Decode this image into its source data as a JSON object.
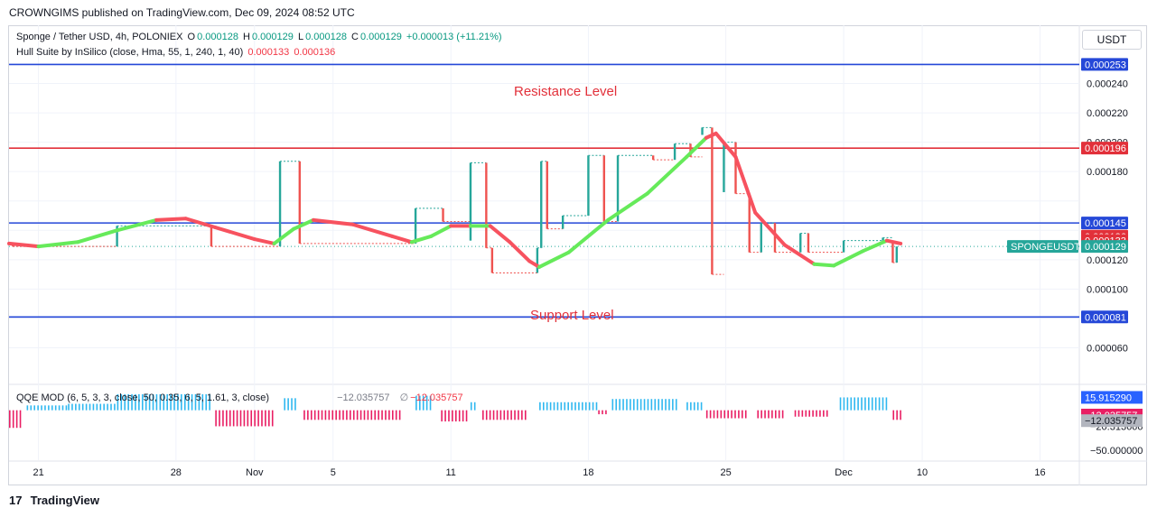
{
  "header": {
    "publisher_line": "CROWNGIMS published on TradingView.com, Dec 09, 2024 08:52 UTC"
  },
  "legend": {
    "symbol": "Sponge / Tether USD, 4h, POLONIEX",
    "o_label": "O",
    "o_value": "0.000128",
    "h_label": "H",
    "h_value": "0.000129",
    "l_label": "L",
    "l_value": "0.000128",
    "c_label": "C",
    "c_value": "0.000129",
    "change": "+0.000013 (+11.21%)",
    "indicator": "Hull Suite by InSilico (close, Hma, 55, 1, 240, 1, 40)",
    "indicator_v1": "0.000133",
    "indicator_v2": "0.000136"
  },
  "qqe_legend": {
    "name": "QQE MOD (6, 5, 3, 3, close, 50, 0.35, 6, 5, 1.61, 3, close)",
    "v1": "−12.035757",
    "v2": "∅",
    "v3": "−12.035757"
  },
  "currency_button": "USDT",
  "annotations": {
    "resistance": "Resistance Level",
    "support": "Support Level"
  },
  "footer": {
    "brand": "TradingView",
    "logo_glyph": "17"
  },
  "colors": {
    "up": "#26a69a",
    "down": "#ef5350",
    "hull_up": "#66ea5a",
    "hull_down": "#f7525f",
    "resistance": "#e2303a",
    "support": "#2548d8",
    "qqe_up": "#2fb8f0",
    "qqe_down": "#e91e63"
  },
  "chart_data": {
    "type": "candlestick",
    "price_axis": {
      "ticks": [
        6e-05,
        8e-05,
        0.0001,
        0.00012,
        0.00014,
        0.00016,
        0.00018,
        0.0002,
        0.00022,
        0.00024
      ],
      "tick_labels": [
        "0.000060",
        "0.000100",
        "0.000120",
        "0.000180",
        "0.000200",
        "0.000220",
        "0.000240"
      ],
      "ylim": [
        4e-05,
        0.00026
      ]
    },
    "price_badges": [
      {
        "label": "0.000253",
        "value": 0.000253,
        "color": "#2548d8"
      },
      {
        "label": "0.000196",
        "value": 0.000196,
        "color": "#e2303a"
      },
      {
        "label": "0.000145",
        "value": 0.000145,
        "color": "#2548d8"
      },
      {
        "label": "0.000136",
        "value": 0.000136,
        "color": "#e2303a"
      },
      {
        "label": "0.000133",
        "value": 0.000133,
        "color": "#e2303a"
      },
      {
        "label": "0.000129",
        "value": 0.000129,
        "color": "#26a69a"
      },
      {
        "label": "0.000081",
        "value": 8.1e-05,
        "color": "#2548d8"
      }
    ],
    "symbol_badge": "SPONGEUSDT",
    "horizontal_lines": [
      {
        "value": 0.000253,
        "color": "#2548d8"
      },
      {
        "value": 0.000196,
        "color": "#e2303a"
      },
      {
        "value": 0.000145,
        "color": "#2548d8"
      },
      {
        "value": 8.1e-05,
        "color": "#2548d8"
      }
    ],
    "x_axis": {
      "labels": [
        "21",
        "28",
        "Nov",
        "5",
        "11",
        "18",
        "25",
        "Dec",
        "10",
        "16"
      ],
      "positions": [
        0,
        7,
        11,
        15,
        21,
        28,
        35,
        41,
        45,
        51
      ],
      "range": [
        -1.5,
        53
      ]
    },
    "candles": [
      {
        "t": -1.3,
        "o": 0.00013,
        "c": 0.000129
      },
      {
        "t": 4.0,
        "o": 0.000129,
        "c": 0.000143
      },
      {
        "t": 8.8,
        "o": 0.000143,
        "c": 0.000129
      },
      {
        "t": 12.3,
        "o": 0.000129,
        "c": 0.000187
      },
      {
        "t": 13.3,
        "o": 0.000187,
        "c": 0.000131
      },
      {
        "t": 19.2,
        "o": 0.000131,
        "c": 0.000155
      },
      {
        "t": 20.6,
        "o": 0.000155,
        "c": 0.000146
      },
      {
        "t": 22.0,
        "o": 0.000133,
        "c": 0.000186
      },
      {
        "t": 22.8,
        "o": 0.000186,
        "c": 0.000128
      },
      {
        "t": 23.1,
        "o": 0.000128,
        "c": 0.000111
      },
      {
        "t": 25.4,
        "o": 0.000111,
        "c": 0.000128
      },
      {
        "t": 25.6,
        "o": 0.000128,
        "c": 0.000187
      },
      {
        "t": 25.9,
        "o": 0.000187,
        "c": 0.000141
      },
      {
        "t": 26.7,
        "o": 0.000141,
        "c": 0.00015
      },
      {
        "t": 28.0,
        "o": 0.00015,
        "c": 0.000191
      },
      {
        "t": 28.8,
        "o": 0.000191,
        "c": 0.000146
      },
      {
        "t": 29.5,
        "o": 0.000146,
        "c": 0.000191
      },
      {
        "t": 31.3,
        "o": 0.000191,
        "c": 0.000188
      },
      {
        "t": 32.4,
        "o": 0.000188,
        "c": 0.000199
      },
      {
        "t": 33.2,
        "o": 0.000199,
        "c": 0.00019
      },
      {
        "t": 33.8,
        "o": 0.000205,
        "c": 0.00021
      },
      {
        "t": 34.3,
        "o": 0.00021,
        "c": 0.00011
      },
      {
        "t": 34.9,
        "o": 0.000166,
        "c": 0.0002
      },
      {
        "t": 35.5,
        "o": 0.0002,
        "c": 0.000165
      },
      {
        "t": 36.2,
        "o": 0.000165,
        "c": 0.000125
      },
      {
        "t": 36.8,
        "o": 0.000125,
        "c": 0.000145
      },
      {
        "t": 37.5,
        "o": 0.000145,
        "c": 0.000125
      },
      {
        "t": 38.8,
        "o": 0.000125,
        "c": 0.000138
      },
      {
        "t": 39.2,
        "o": 0.000138,
        "c": 0.000125
      },
      {
        "t": 41.0,
        "o": 0.000125,
        "c": 0.000133
      },
      {
        "t": 43.0,
        "o": 0.000133,
        "c": 0.000135
      },
      {
        "t": 43.5,
        "o": 0.000133,
        "c": 0.000118
      },
      {
        "t": 43.7,
        "o": 0.000118,
        "c": 0.000129
      }
    ],
    "hull_line": [
      {
        "t": -1.5,
        "v": 0.000131,
        "dir": "down"
      },
      {
        "t": 0,
        "v": 0.000129,
        "dir": "down"
      },
      {
        "t": 2,
        "v": 0.000132,
        "dir": "up"
      },
      {
        "t": 4,
        "v": 0.00014,
        "dir": "up"
      },
      {
        "t": 6,
        "v": 0.000147,
        "dir": "up"
      },
      {
        "t": 7.5,
        "v": 0.000148,
        "dir": "down"
      },
      {
        "t": 9,
        "v": 0.000142,
        "dir": "down"
      },
      {
        "t": 11,
        "v": 0.000134,
        "dir": "down"
      },
      {
        "t": 12,
        "v": 0.000131,
        "dir": "down"
      },
      {
        "t": 13,
        "v": 0.000141,
        "dir": "up"
      },
      {
        "t": 14,
        "v": 0.000147,
        "dir": "up"
      },
      {
        "t": 16,
        "v": 0.000144,
        "dir": "down"
      },
      {
        "t": 18,
        "v": 0.000136,
        "dir": "down"
      },
      {
        "t": 19,
        "v": 0.000132,
        "dir": "down"
      },
      {
        "t": 20,
        "v": 0.000136,
        "dir": "up"
      },
      {
        "t": 21,
        "v": 0.000143,
        "dir": "up"
      },
      {
        "t": 22,
        "v": 0.000143,
        "dir": "down"
      },
      {
        "t": 23,
        "v": 0.000143,
        "dir": "up"
      },
      {
        "t": 24,
        "v": 0.000132,
        "dir": "down"
      },
      {
        "t": 25,
        "v": 0.000119,
        "dir": "down"
      },
      {
        "t": 25.5,
        "v": 0.000115,
        "dir": "down"
      },
      {
        "t": 27,
        "v": 0.000125,
        "dir": "up"
      },
      {
        "t": 29,
        "v": 0.000147,
        "dir": "up"
      },
      {
        "t": 31,
        "v": 0.000165,
        "dir": "up"
      },
      {
        "t": 33,
        "v": 0.00019,
        "dir": "up"
      },
      {
        "t": 34,
        "v": 0.000203,
        "dir": "up"
      },
      {
        "t": 34.5,
        "v": 0.000206,
        "dir": "down"
      },
      {
        "t": 35.5,
        "v": 0.00019,
        "dir": "down"
      },
      {
        "t": 36.5,
        "v": 0.000152,
        "dir": "down"
      },
      {
        "t": 38,
        "v": 0.00013,
        "dir": "down"
      },
      {
        "t": 39.5,
        "v": 0.000117,
        "dir": "down"
      },
      {
        "t": 40.5,
        "v": 0.000116,
        "dir": "up"
      },
      {
        "t": 42,
        "v": 0.000126,
        "dir": "up"
      },
      {
        "t": 43.2,
        "v": 0.000133,
        "dir": "up"
      },
      {
        "t": 43.9,
        "v": 0.000131,
        "dir": "down"
      }
    ],
    "qqe_axis": {
      "tick_labels": [
        "−20.313666",
        "−50.000000"
      ],
      "badges": [
        {
          "label": "15.915290",
          "color": "#2962ff"
        },
        {
          "label": "−12.035757",
          "color": "#e91e63"
        },
        {
          "label": "−12.035757",
          "color": "#b2b5be"
        }
      ],
      "ylim": [
        -60,
        30
      ]
    },
    "qqe_segments": [
      {
        "from": -1.5,
        "to": -0.8,
        "v": -22,
        "dir": "down"
      },
      {
        "from": -0.6,
        "to": 1.5,
        "v": 6,
        "dir": "up"
      },
      {
        "from": 1.5,
        "to": 4.0,
        "v": 8,
        "dir": "up"
      },
      {
        "from": 4.0,
        "to": 8.8,
        "v": 20,
        "dir": "up"
      },
      {
        "from": 9.0,
        "to": 12.0,
        "v": -20,
        "dir": "down"
      },
      {
        "from": 12.5,
        "to": 13.2,
        "v": 15,
        "dir": "up"
      },
      {
        "from": 13.5,
        "to": 18.5,
        "v": -12,
        "dir": "down"
      },
      {
        "from": 19.2,
        "to": 20.0,
        "v": 18,
        "dir": "up"
      },
      {
        "from": 20.5,
        "to": 21.8,
        "v": -14,
        "dir": "down"
      },
      {
        "from": 22.0,
        "to": 22.3,
        "v": 10,
        "dir": "up"
      },
      {
        "from": 22.6,
        "to": 24.8,
        "v": -12,
        "dir": "down"
      },
      {
        "from": 25.5,
        "to": 28.5,
        "v": 10,
        "dir": "up"
      },
      {
        "from": 28.5,
        "to": 29.0,
        "v": -5,
        "dir": "down"
      },
      {
        "from": 29.2,
        "to": 32.5,
        "v": 14,
        "dir": "up"
      },
      {
        "from": 33.0,
        "to": 33.8,
        "v": 10,
        "dir": "up"
      },
      {
        "from": 34.0,
        "to": 36.0,
        "v": -10,
        "dir": "down"
      },
      {
        "from": 36.6,
        "to": 38.0,
        "v": -10,
        "dir": "down"
      },
      {
        "from": 38.5,
        "to": 40.2,
        "v": -8,
        "dir": "down"
      },
      {
        "from": 40.8,
        "to": 43.3,
        "v": 16,
        "dir": "up"
      },
      {
        "from": 43.5,
        "to": 43.9,
        "v": -12,
        "dir": "down"
      }
    ]
  }
}
